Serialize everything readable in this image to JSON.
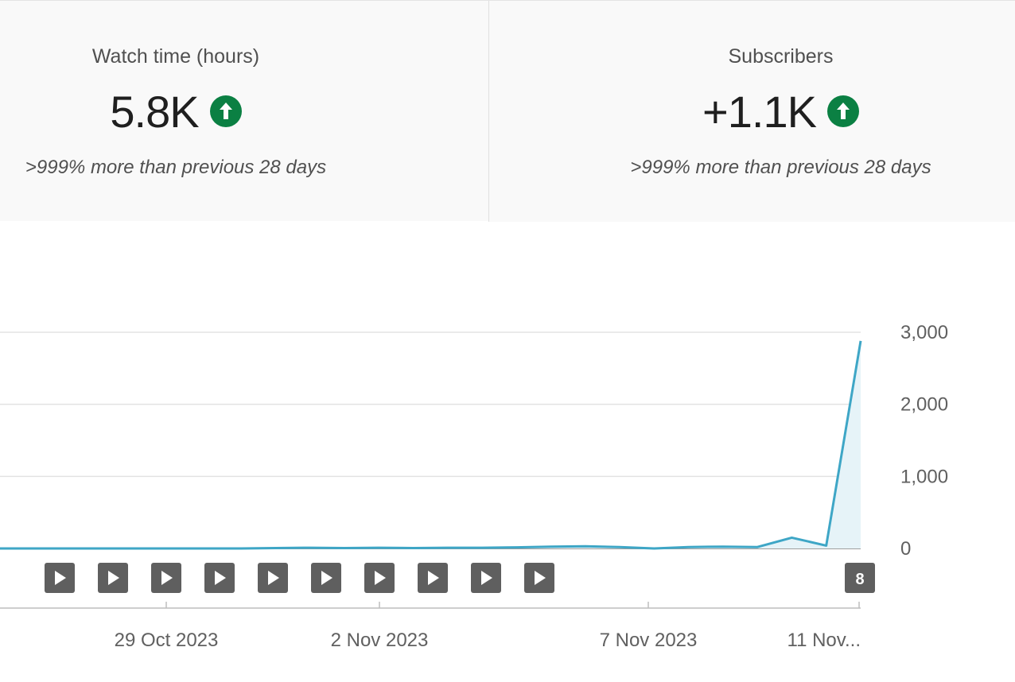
{
  "metrics": [
    {
      "label": "Watch time (hours)",
      "value": "5.8K",
      "trend_icon": "arrow-up-circle-icon",
      "comparison": ">999% more than previous 28 days"
    },
    {
      "label": "Subscribers",
      "value": "+1.1K",
      "trend_icon": "arrow-up-circle-icon",
      "comparison": ">999% more than previous 28 days"
    }
  ],
  "colors": {
    "trend_up": "#0b8043",
    "line": "#3ea6c6",
    "area": "#e6f3f8",
    "marker": "#5f5f5f"
  },
  "chart_data": {
    "type": "area",
    "title": "",
    "xlabel": "",
    "ylabel": "",
    "ylim": [
      0,
      3000
    ],
    "yticks": [
      "3,000",
      "2,000",
      "1,000",
      "0"
    ],
    "ytick_values": [
      3000,
      2000,
      1000,
      0
    ],
    "xtick_labels": [
      "29 Oct 2023",
      "2 Nov 2023",
      "7 Nov 2023",
      "11 Nov..."
    ],
    "series": [
      {
        "values": [
          0,
          0,
          0,
          0,
          0,
          0,
          0,
          0,
          5,
          10,
          5,
          10,
          5,
          10,
          10,
          15,
          25,
          30,
          20,
          0,
          20,
          25,
          20,
          150,
          40,
          2880
        ]
      }
    ],
    "video_markers": {
      "icon": "play-icon",
      "count": 10,
      "cluster_label": "8"
    }
  }
}
